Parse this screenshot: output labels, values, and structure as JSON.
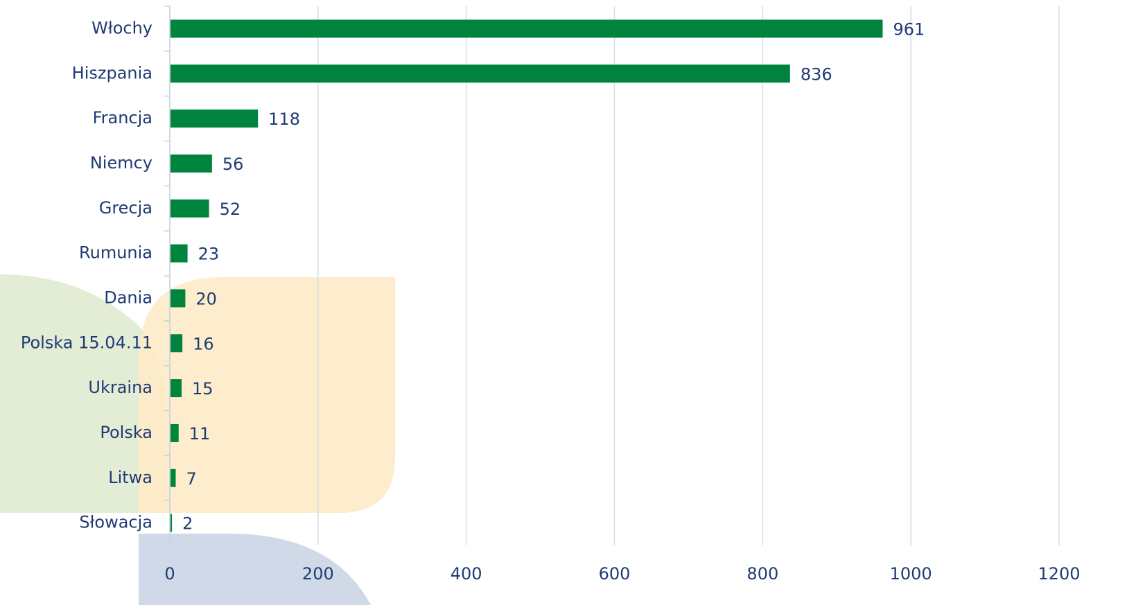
{
  "chart_data": {
    "type": "bar",
    "orientation": "horizontal",
    "categories": [
      "Włochy",
      "Hiszpania",
      "Francja",
      "Niemcy",
      "Grecja",
      "Rumunia",
      "Dania",
      "Polska 15.04.11",
      "Ukraina",
      "Polska",
      "Litwa",
      "Słowacja"
    ],
    "values": [
      961,
      836,
      118,
      56,
      52,
      23,
      20,
      16,
      15,
      11,
      7,
      2
    ],
    "color": "#00843d",
    "xlim": [
      0,
      1200
    ],
    "xticks": [
      0,
      200,
      400,
      600,
      800,
      1000,
      1200
    ],
    "grid": true
  }
}
